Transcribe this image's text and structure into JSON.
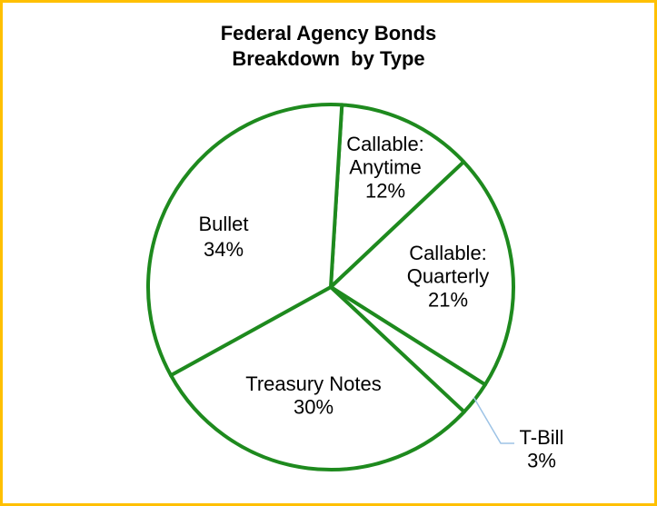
{
  "chart_data": {
    "type": "pie",
    "title": [
      "Federal Agency Bonds",
      "Breakdown  by Type"
    ],
    "slices": [
      {
        "label": "Callable:\nAnytime",
        "value": 12,
        "text": "12%"
      },
      {
        "label": "Callable:\nQuarterly",
        "value": 21,
        "text": "21%"
      },
      {
        "label": "T-Bill",
        "value": 3,
        "text": "3%"
      },
      {
        "label": "Treasury Notes",
        "value": 30,
        "text": "30%"
      },
      {
        "label": "Bullet",
        "value": 34,
        "text": "34%"
      }
    ],
    "colors": {
      "slice_fill": "#FFFFFF",
      "slice_stroke": "#1E8A1E",
      "frame_border": "#FFC000",
      "leader_line": "#9DC3E6"
    },
    "legend": "none"
  }
}
